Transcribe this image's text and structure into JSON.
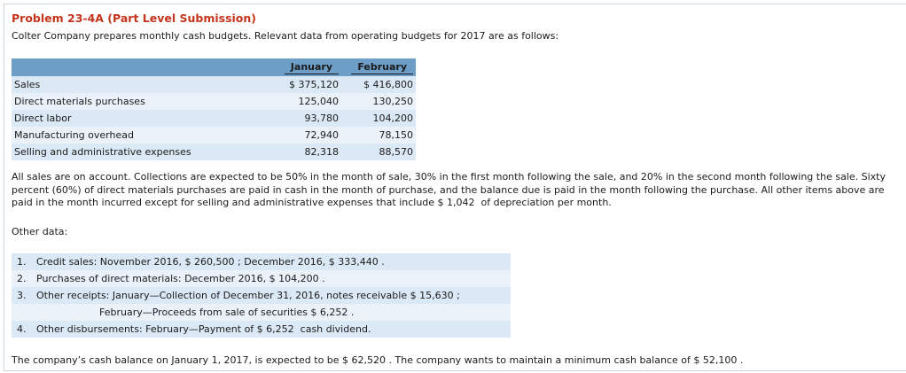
{
  "page": {
    "title": "Problem 23-4A (Part Level Submission)",
    "intro": "Colter Company prepares monthly cash budgets. Relevant data from operating budgets for 2017 are as follows:",
    "collections_paragraph": "All sales are on account. Collections are expected to be 50% in the month of sale, 30% in the first month following the sale, and 20% in the second month following the sale. Sixty percent (60%) of direct materials purchases are paid in cash in the month of purchase, and the balance due is paid in the month following the purchase. All other items above are paid in the month incurred except for selling and administrative expenses that include $ 1,042  of depreciation per month.",
    "other_data_label": "Other data:",
    "closing": "The company’s cash balance on January 1, 2017, is expected to be $ 62,520 . The company wants to maintain a minimum cash balance of $ 52,100 ."
  },
  "budget_table": {
    "columns": [
      "January",
      "February"
    ],
    "rows": [
      {
        "label": "Sales",
        "january": "$ 375,120",
        "february": "$ 416,800"
      },
      {
        "label": "Direct materials purchases",
        "january": "125,040",
        "february": "130,250"
      },
      {
        "label": "Direct labor",
        "january": "93,780",
        "february": "104,200"
      },
      {
        "label": "Manufacturing overhead",
        "january": "72,940",
        "february": "78,150"
      },
      {
        "label": "Selling and administrative expenses",
        "january": "82,318",
        "february": "88,570"
      }
    ]
  },
  "other_data_list": {
    "lines": [
      {
        "num": "1.",
        "text": "Credit sales: November 2016, $ 260,500 ; December 2016, $ 333,440 .",
        "indent": false
      },
      {
        "num": "2.",
        "text": "Purchases of direct materials: December 2016, $ 104,200 .",
        "indent": false
      },
      {
        "num": "3.",
        "text": "Other receipts: January—Collection of December 31, 2016, notes receivable $ 15,630 ;",
        "indent": false
      },
      {
        "num": "",
        "text": "February—Proceeds from sale of securities $ 6,252 .",
        "indent": true
      },
      {
        "num": "4.",
        "text": "Other disbursements: February—Payment of $ 6,252  cash dividend.",
        "indent": false
      }
    ]
  },
  "colors": {
    "title_red": "#c5351d",
    "header_blue": "#6d9ec8",
    "stripe_dark": "#dbe8f5",
    "stripe_light": "#eaf1f9",
    "border_color": "#cbd5de",
    "text_color": "#1b1b1b"
  }
}
